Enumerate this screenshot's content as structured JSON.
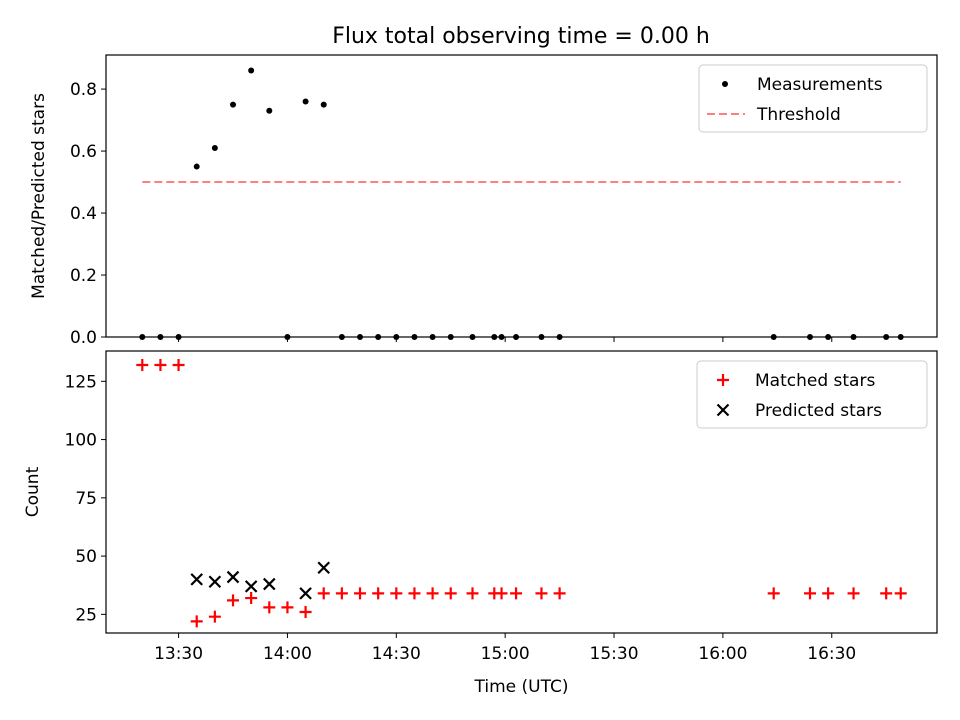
{
  "title": "Flux total observing time = 0.00 h",
  "chart_data": [
    {
      "type": "scatter",
      "ylabel": "Matched/Predicted stars",
      "xlabel": "",
      "xlim": [
        "13:10",
        "16:59"
      ],
      "ylim": [
        0,
        0.91
      ],
      "yticks": [
        0.0,
        0.2,
        0.4,
        0.6,
        0.8
      ],
      "ytick_labels": [
        "0.0",
        "0.2",
        "0.4",
        "0.6",
        "0.8"
      ],
      "grid": false,
      "legend_position": "upper right",
      "series": [
        {
          "name": "Measurements",
          "kind": "scatter",
          "marker": "dot",
          "color": "#000000",
          "x": [
            "13:20",
            "13:25",
            "13:30",
            "13:35",
            "13:40",
            "13:45",
            "13:50",
            "13:55",
            "14:00",
            "14:05",
            "14:10",
            "14:15",
            "14:20",
            "14:25",
            "14:30",
            "14:35",
            "14:40",
            "14:45",
            "14:51",
            "14:57",
            "14:59",
            "15:03",
            "15:10",
            "15:15",
            "16:14",
            "16:24",
            "16:29",
            "16:36",
            "16:45",
            "16:49"
          ],
          "y": [
            0,
            0,
            0,
            0.55,
            0.61,
            0.75,
            0.86,
            0.73,
            0,
            0.76,
            0.75,
            0,
            0,
            0,
            0,
            0,
            0,
            0,
            0,
            0,
            0,
            0,
            0,
            0,
            0,
            0,
            0,
            0,
            0,
            0
          ]
        },
        {
          "name": "Threshold",
          "kind": "line",
          "style": "dashed",
          "color": "#ff7f7f",
          "x": [
            "13:20",
            "16:49"
          ],
          "y": [
            0.5,
            0.5
          ]
        }
      ]
    },
    {
      "type": "scatter",
      "ylabel": "Count",
      "xlabel": "Time (UTC)",
      "xlim": [
        "13:10",
        "16:59"
      ],
      "ylim": [
        17,
        138
      ],
      "yticks": [
        25,
        50,
        75,
        100,
        125
      ],
      "ytick_labels": [
        "25",
        "50",
        "75",
        "100",
        "125"
      ],
      "xticks": [
        "13:30",
        "14:00",
        "14:30",
        "15:00",
        "15:30",
        "16:00",
        "16:30"
      ],
      "xtick_labels": [
        "13:30",
        "14:00",
        "14:30",
        "15:00",
        "15:30",
        "16:00",
        "16:30"
      ],
      "grid": false,
      "legend_position": "upper right",
      "series": [
        {
          "name": "Matched stars",
          "kind": "scatter",
          "marker": "plus",
          "color": "#ff0000",
          "x": [
            "13:20",
            "13:25",
            "13:30",
            "13:35",
            "13:40",
            "13:45",
            "13:50",
            "13:55",
            "14:00",
            "14:05",
            "14:10",
            "14:15",
            "14:20",
            "14:25",
            "14:30",
            "14:35",
            "14:40",
            "14:45",
            "14:51",
            "14:57",
            "14:59",
            "15:03",
            "15:10",
            "15:15",
            "16:14",
            "16:24",
            "16:29",
            "16:36",
            "16:45",
            "16:49"
          ],
          "y": [
            132,
            132,
            132,
            22,
            24,
            31,
            32,
            28,
            28,
            26,
            34,
            34,
            34,
            34,
            34,
            34,
            34,
            34,
            34,
            34,
            34,
            34,
            34,
            34,
            34,
            34,
            34,
            34,
            34,
            34
          ]
        },
        {
          "name": "Predicted stars",
          "kind": "scatter",
          "marker": "x",
          "color": "#000000",
          "x": [
            "13:35",
            "13:40",
            "13:45",
            "13:50",
            "13:55",
            "14:05",
            "14:10"
          ],
          "y": [
            40,
            39,
            41,
            37,
            38,
            34,
            45
          ]
        }
      ]
    }
  ]
}
